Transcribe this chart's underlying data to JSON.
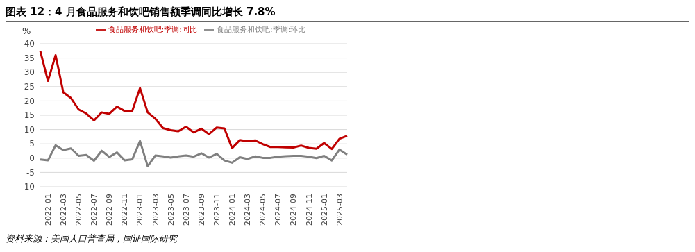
{
  "chart_data": {
    "type": "line",
    "title": "图表 12：4 月食品服务和饮吧销售额季调同比增长 7.8%",
    "ylabel": "%",
    "annotations": [
      "资料来源：美国人口普查局，国证国际研究"
    ],
    "categories": [
      null,
      "2022-01",
      null,
      "2022-03",
      null,
      "2022-05",
      null,
      "2022-07",
      null,
      "2022-09",
      null,
      "2022-11",
      null,
      "2023-01",
      null,
      "2023-03",
      null,
      "2023-05",
      null,
      "2023-07",
      null,
      "2023-09",
      null,
      "2023-11",
      null,
      "2024-01",
      null,
      "2024-03",
      null,
      "2024-05",
      null,
      "2024-07",
      null,
      "2024-09",
      null,
      "2024-11",
      null,
      "2025-01",
      null,
      "2025-03",
      null
    ],
    "series": [
      {
        "name": "食品服务和饮吧:季调:同比",
        "color": "#c00000",
        "values": [
          37.5,
          27,
          36,
          23,
          21,
          17,
          15.6,
          13.2,
          16,
          15.5,
          18,
          16.5,
          16.6,
          24.5,
          16,
          13.8,
          10.5,
          9.8,
          9.4,
          11,
          9,
          10.3,
          8.4,
          10.7,
          10.4,
          3.5,
          6.3,
          5.9,
          6.2,
          4.9,
          3.9,
          3.9,
          3.8,
          3.7,
          4.4,
          3.6,
          3.3,
          5.3,
          3.2,
          6.8,
          7.8
        ]
      },
      {
        "name": "食品服务和饮吧:季调:环比",
        "color": "#808080",
        "values": [
          -0.5,
          -0.8,
          4.5,
          2.8,
          3.4,
          0.8,
          1.1,
          -0.9,
          2.6,
          0.4,
          2,
          -0.8,
          -0.4,
          6,
          -2.8,
          0.9,
          0.6,
          0.2,
          0.6,
          0.9,
          0.5,
          1.7,
          0.2,
          1.5,
          -0.8,
          -1.6,
          0.3,
          -0.3,
          0.6,
          0.1,
          0.1,
          0.5,
          0.7,
          0.8,
          0.8,
          0.5,
          0,
          0.8,
          -0.8,
          3,
          1.2
        ]
      }
    ],
    "ylim": [
      -10,
      40
    ],
    "yticks": [
      -10,
      -5,
      0,
      5,
      10,
      15,
      20,
      25,
      30,
      35,
      40
    ],
    "grid": "y",
    "legend": "top",
    "marker": "none",
    "line_style": "solid"
  }
}
